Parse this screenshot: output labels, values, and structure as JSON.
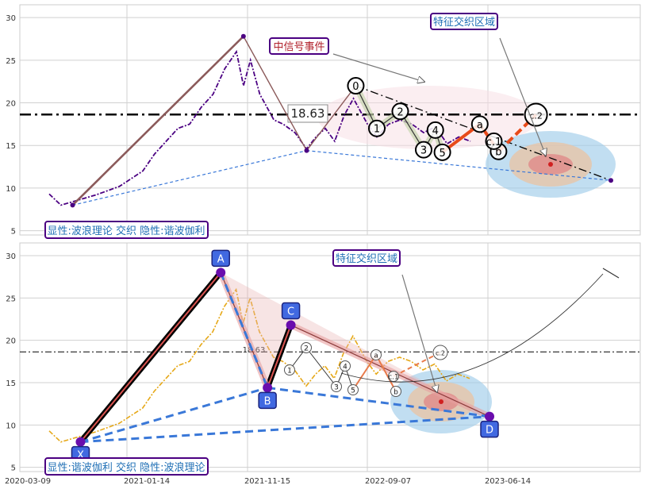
{
  "colors": {
    "grid": "#d0d0d0",
    "price_upper": "#4b0082",
    "price_lower": "#e6a817",
    "wave_line": "#8b5a5a",
    "dashed_blue": "#3a78d8",
    "refline": "#000000",
    "orange": "#e84a1a",
    "label_box_border": "#4b0082",
    "label_text": "#1f6fb5",
    "event_text": "#b0202a",
    "harmonic_fill": "#4169e1",
    "harmonic_text": "#ffffff"
  },
  "chart_data": [
    {
      "type": "line",
      "panel": "upper",
      "ylim": [
        4.5,
        31.5
      ],
      "yticks": [
        5,
        10,
        15,
        20,
        25,
        30
      ],
      "grid": true,
      "reference_line": {
        "value": 18.63,
        "label": "18.63",
        "style": "dash-dot"
      },
      "price_series_color": "price_upper",
      "price_points": [
        [
          0.0,
          9.3
        ],
        [
          0.5,
          8.0
        ],
        [
          1.0,
          8.4
        ],
        [
          2.0,
          9.2
        ],
        [
          3.0,
          10.2
        ],
        [
          4.0,
          12.0
        ],
        [
          4.5,
          14.0
        ],
        [
          5.0,
          15.5
        ],
        [
          5.5,
          17.0
        ],
        [
          6.0,
          17.5
        ],
        [
          6.5,
          19.5
        ],
        [
          7.0,
          21.0
        ],
        [
          7.5,
          24.0
        ],
        [
          8.0,
          26.0
        ],
        [
          8.3,
          22.0
        ],
        [
          8.6,
          25.0
        ],
        [
          9.0,
          21.0
        ],
        [
          9.3,
          19.5
        ],
        [
          9.6,
          18.0
        ],
        [
          10.0,
          17.5
        ],
        [
          10.5,
          16.5
        ],
        [
          11.0,
          14.6
        ],
        [
          11.4,
          16.0
        ],
        [
          11.8,
          17.0
        ],
        [
          12.2,
          15.5
        ],
        [
          12.6,
          18.5
        ],
        [
          13.0,
          20.5
        ],
        [
          13.3,
          19.0
        ],
        [
          13.6,
          17.5
        ],
        [
          14.0,
          16.0
        ],
        [
          14.5,
          17.5
        ],
        [
          15.0,
          18.0
        ],
        [
          15.5,
          17.5
        ],
        [
          16.0,
          16.5
        ],
        [
          16.5,
          17.2
        ],
        [
          17.0,
          15.2
        ],
        [
          17.5,
          16.0
        ],
        [
          18.0,
          15.5
        ]
      ],
      "wave_points": [
        {
          "x": 1.0,
          "y": 8.0,
          "label": ""
        },
        {
          "x": 8.3,
          "y": 27.8,
          "label": ""
        },
        {
          "x": 11.0,
          "y": 14.4,
          "label": ""
        },
        {
          "x": 13.1,
          "y": 22.0,
          "label": "0"
        },
        {
          "x": 14.0,
          "y": 17.0,
          "label": "1"
        },
        {
          "x": 15.0,
          "y": 19.0,
          "label": "2"
        },
        {
          "x": 16.0,
          "y": 14.5,
          "label": "3"
        },
        {
          "x": 16.5,
          "y": 16.8,
          "label": "4"
        },
        {
          "x": 16.8,
          "y": 14.2,
          "label": "5"
        },
        {
          "x": 18.4,
          "y": 17.5,
          "label": "a"
        },
        {
          "x": 19.2,
          "y": 14.3,
          "label": "b"
        },
        {
          "x": 20.8,
          "y": 18.6,
          "label": "c.2"
        },
        {
          "x": 19.0,
          "y": 15.5,
          "label": "c.1"
        },
        {
          "x": 24.0,
          "y": 10.9,
          "label": ""
        }
      ],
      "annotations": [
        {
          "text": "中信号事件",
          "role": "event"
        },
        {
          "text": "特征交织区域",
          "role": "zone"
        }
      ],
      "caption": "显性:波浪理论 交织 隐性:谐波伽利"
    },
    {
      "type": "line",
      "panel": "lower",
      "ylim": [
        4.5,
        31.5
      ],
      "yticks": [
        5,
        10,
        15,
        20,
        25,
        30
      ],
      "xticks": [
        "2020-03-09",
        "2021-01-14",
        "2021-11-15",
        "2022-09-07",
        "2023-06-14"
      ],
      "grid": true,
      "reference_line": {
        "value": 18.63,
        "label": "18.63",
        "style": "dash-dot"
      },
      "price_series_color": "price_lower",
      "harmonic_points": [
        {
          "label": "X",
          "x": 1.0,
          "y": 8.0
        },
        {
          "label": "A",
          "x": 7.0,
          "y": 28.0
        },
        {
          "label": "B",
          "x": 9.0,
          "y": 14.4
        },
        {
          "label": "C",
          "x": 10.0,
          "y": 21.8
        },
        {
          "label": "D",
          "x": 18.5,
          "y": 11.0
        }
      ],
      "wave_labels": [
        "1",
        "2",
        "3",
        "4",
        "5",
        "a",
        "b",
        "c.1",
        "c.2"
      ],
      "annotations": [
        {
          "text": "特征交织区域",
          "role": "zone"
        }
      ],
      "caption": "显性:谐波伽利 交织 隐性:波浪理论"
    }
  ]
}
